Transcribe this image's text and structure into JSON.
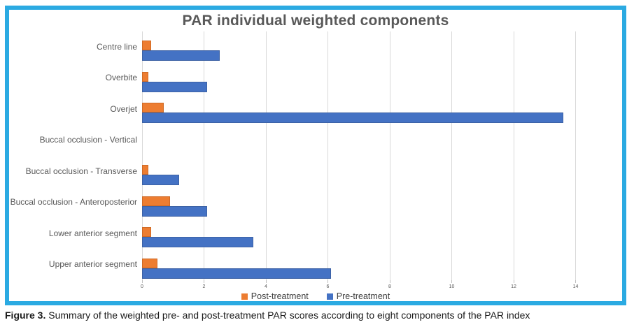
{
  "figure_caption": {
    "label": "Figure 3.",
    "text": "Summary of the weighted pre- and post-treatment PAR scores according to eight components of the PAR index"
  },
  "chart_data": {
    "type": "bar",
    "orientation": "horizontal",
    "title": "PAR individual weighted components",
    "categories": [
      "Centre line",
      "Overbite",
      "Overjet",
      "Buccal occlusion - Vertical",
      "Buccal occlusion - Transverse",
      "Buccal occlusion - Anteroposterior",
      "Lower anterior segment",
      "Upper anterior segment"
    ],
    "series": [
      {
        "name": "Post-treatment",
        "color": "#ED7D31",
        "border_color": "#CF6A26",
        "values": [
          0.3,
          0.2,
          0.7,
          0,
          0.2,
          0.9,
          0.3,
          0.5
        ]
      },
      {
        "name": "Pre-treatment",
        "color": "#4472C4",
        "border_color": "#3D62A5",
        "values": [
          2.5,
          2.1,
          13.6,
          0,
          1.2,
          2.1,
          3.6,
          6.1
        ]
      }
    ],
    "xlim": [
      0,
      15.3
    ],
    "xticks": [
      0,
      2,
      4,
      6,
      8,
      10,
      12,
      14
    ],
    "grid": "vertical",
    "legend_position": "bottom",
    "frame_color": "#2BAAE2",
    "gridline_color": "#D9D9D9"
  }
}
